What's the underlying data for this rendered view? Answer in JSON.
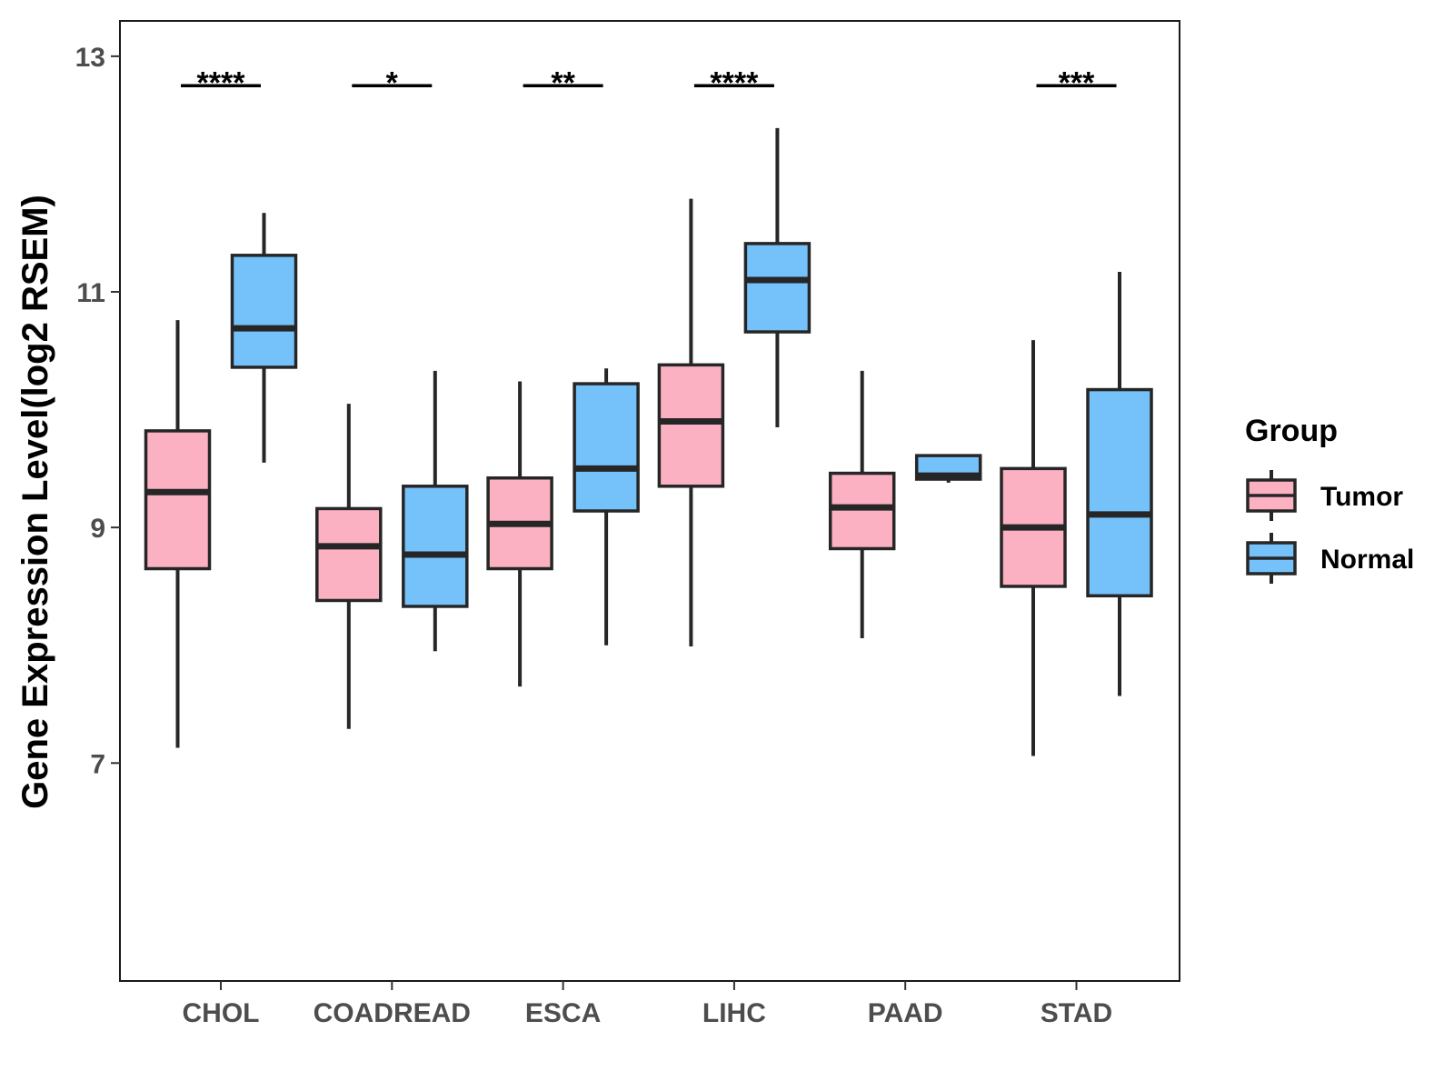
{
  "chart_data": {
    "type": "boxplot",
    "title": "",
    "xlabel": "",
    "ylabel": "Gene Expression Level(log2 RSEM)",
    "ylim": [
      5,
      13
    ],
    "yticks": [
      7,
      9,
      11,
      13
    ],
    "grid": false,
    "legend_position": "right",
    "legend_title": "Group",
    "categories": [
      "CHOL",
      "COADREAD",
      "ESCA",
      "LIHC",
      "PAAD",
      "STAD"
    ],
    "series": [
      {
        "name": "Tumor",
        "color": "#fbb1c2",
        "boxes": [
          {
            "min": 7.13,
            "q1": 8.65,
            "median": 9.3,
            "q3": 9.82,
            "max": 10.76
          },
          {
            "min": 7.29,
            "q1": 8.38,
            "median": 8.84,
            "q3": 9.16,
            "max": 10.05
          },
          {
            "min": 7.65,
            "q1": 8.65,
            "median": 9.03,
            "q3": 9.42,
            "max": 10.24
          },
          {
            "min": 7.99,
            "q1": 9.35,
            "median": 9.9,
            "q3": 10.38,
            "max": 11.79
          },
          {
            "min": 8.06,
            "q1": 8.82,
            "median": 9.17,
            "q3": 9.46,
            "max": 10.33
          },
          {
            "min": 7.06,
            "q1": 8.5,
            "median": 9.0,
            "q3": 9.5,
            "max": 10.59
          }
        ]
      },
      {
        "name": "Normal",
        "color": "#75c1fa",
        "boxes": [
          {
            "min": 9.55,
            "q1": 10.36,
            "median": 10.69,
            "q3": 11.31,
            "max": 11.67
          },
          {
            "min": 7.95,
            "q1": 8.33,
            "median": 8.77,
            "q3": 9.35,
            "max": 10.33
          },
          {
            "min": 8.0,
            "q1": 9.14,
            "median": 9.5,
            "q3": 10.22,
            "max": 10.35
          },
          {
            "min": 9.85,
            "q1": 10.66,
            "median": 11.1,
            "q3": 11.41,
            "max": 12.39
          },
          {
            "min": 9.38,
            "q1": 9.41,
            "median": 9.44,
            "q3": 9.61,
            "max": 9.61
          },
          {
            "min": 7.57,
            "q1": 8.42,
            "median": 9.11,
            "q3": 10.17,
            "max": 11.17
          }
        ]
      }
    ],
    "significance": [
      {
        "category": "CHOL",
        "label": "****"
      },
      {
        "category": "COADREAD",
        "label": "*"
      },
      {
        "category": "ESCA",
        "label": "**"
      },
      {
        "category": "LIHC",
        "label": "****"
      },
      {
        "category": "STAD",
        "label": "***"
      }
    ],
    "significance_level": 12.75
  }
}
